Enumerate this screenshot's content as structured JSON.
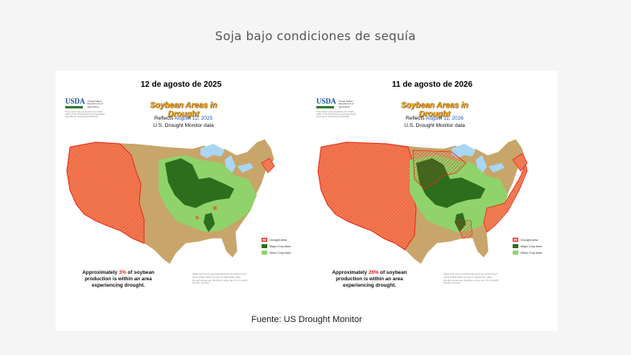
{
  "title": "Soja bajo condiciones de sequía",
  "source": "Fuente: US Drought Monitor",
  "colors": {
    "drought": "#f07a50",
    "drought_border": "#e8291c",
    "major_crop": "#2b6e1e",
    "minor_crop": "#8fd36a",
    "background_land": "#c8a56a",
    "water": "#a9d6f2"
  },
  "panels": [
    {
      "date_title": "12 de agosto de 2025",
      "usda_mark": "USDA",
      "usda_dept": "United States Department of Agriculture",
      "usda_note": "This product was prepared by the USDA Office of the Chief Economist (OCE) World Agricultural Outlook Board (WAOB)",
      "map_title": "Soybean Areas in Drought",
      "reflects_label": "Reflects",
      "reflects_date": "August 12, 2025",
      "monitor_label": "U.S. Drought Monitor data",
      "stat_prefix": "Approximately",
      "stat_pct": "3%",
      "stat_suffix": "of soybean production is within an area experiencing drought.",
      "drought_share": 0.03,
      "note": "Major and minor agricultural areas are determined using USDA 2022 Census of Agriculture data. Drought areas are identified using the U.S. Drought Monitor product.",
      "legend": [
        "Drought Area",
        "Major Crop Area",
        "Minor Crop Area"
      ]
    },
    {
      "date_title": "11 de agosto de 2026",
      "usda_mark": "USDA",
      "usda_dept": "United States Department of Agriculture",
      "usda_note": "This product was prepared by the USDA Office of the Chief Economist (OCE) World Agricultural Outlook Board (WAOB)",
      "map_title": "Soybean Areas in Drought",
      "reflects_label": "Reflects",
      "reflects_date": "August 11, 2026",
      "monitor_label": "U.S. Drought Monitor data",
      "stat_prefix": "Approximately",
      "stat_pct": "26%",
      "stat_suffix": "of soybean production is within an area experiencing drought.",
      "drought_share": 0.26,
      "note": "Major and minor agricultural areas are determined using USDA 2022 Census of Agriculture data. Drought areas are identified using the U.S. Drought Monitor product.",
      "legend": [
        "Drought Area",
        "Major Crop Area",
        "Minor Crop Area"
      ]
    }
  ]
}
